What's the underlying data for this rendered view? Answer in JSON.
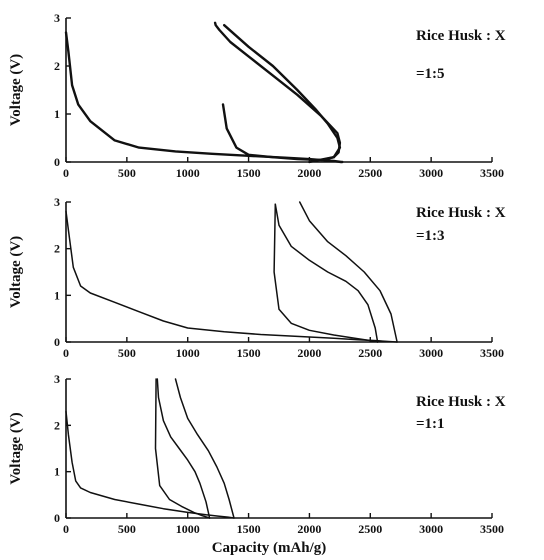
{
  "chart_data": [
    {
      "type": "line",
      "xlabel": "",
      "ylabel": "Voltage (V)",
      "xlim": [
        0,
        3500
      ],
      "ylim": [
        0,
        3
      ],
      "xticks": [
        "0",
        "500",
        "1000",
        "1500",
        "2000",
        "2500",
        "3000",
        "3500"
      ],
      "yticks": [
        "0",
        "1",
        "2",
        "3"
      ],
      "annotation": [
        "Rice Husk : X",
        "=1:5"
      ],
      "series": [
        {
          "x": [
            0,
            20,
            50,
            100,
            200,
            400,
            600,
            900,
            1200,
            1500,
            1800,
            2000,
            2100,
            2150,
            2200,
            2230,
            2260,
            2270
          ],
          "y": [
            2.7,
            2.3,
            1.6,
            1.2,
            0.85,
            0.45,
            0.3,
            0.22,
            0.17,
            0.13,
            0.09,
            0.06,
            0.04,
            0.03,
            0.02,
            0.01,
            0.0,
            0.0
          ]
        },
        {
          "x": [
            2000,
            2100,
            2200,
            2240,
            2250,
            2230,
            2100,
            1900,
            1700,
            1500,
            1350,
            1260,
            1230,
            1225
          ],
          "y": [
            0.0,
            0.05,
            0.1,
            0.2,
            0.4,
            0.6,
            0.95,
            1.4,
            1.8,
            2.2,
            2.5,
            2.75,
            2.85,
            2.9
          ]
        },
        {
          "x": [
            1300,
            1500,
            1700,
            1900,
            2050,
            2150,
            2230,
            2250,
            2200,
            2100,
            1900,
            1700,
            1500,
            1400,
            1320,
            1290
          ],
          "y": [
            2.85,
            2.4,
            2.0,
            1.5,
            1.1,
            0.8,
            0.5,
            0.3,
            0.1,
            0.04,
            0.06,
            0.1,
            0.15,
            0.3,
            0.7,
            1.2
          ]
        }
      ]
    },
    {
      "type": "line",
      "xlabel": "",
      "ylabel": "Voltage (V)",
      "xlim": [
        0,
        3500
      ],
      "ylim": [
        0,
        3
      ],
      "xticks": [
        "0",
        "500",
        "1000",
        "1500",
        "2000",
        "2500",
        "3000",
        "3500"
      ],
      "yticks": [
        "0",
        "1",
        "2",
        "3"
      ],
      "annotation": [
        "Rice Husk : X",
        "=1:3"
      ],
      "series": [
        {
          "x": [
            0,
            20,
            60,
            120,
            200,
            400,
            600,
            800,
            1000,
            1300,
            1600,
            1900,
            2200,
            2400,
            2550,
            2650,
            2720
          ],
          "y": [
            2.8,
            2.4,
            1.6,
            1.2,
            1.05,
            0.85,
            0.65,
            0.45,
            0.3,
            0.22,
            0.16,
            0.12,
            0.08,
            0.05,
            0.03,
            0.01,
            0.0
          ]
        },
        {
          "x": [
            1720,
            1750,
            1850,
            2000,
            2150,
            2300,
            2400,
            2480,
            2540,
            2560
          ],
          "y": [
            2.95,
            2.5,
            2.05,
            1.75,
            1.5,
            1.3,
            1.1,
            0.8,
            0.3,
            0.0
          ]
        },
        {
          "x": [
            1720,
            1710,
            1750,
            1850,
            2000,
            2200,
            2400,
            2530,
            2560
          ],
          "y": [
            2.95,
            1.5,
            0.7,
            0.4,
            0.25,
            0.15,
            0.07,
            0.02,
            0.0
          ]
        },
        {
          "x": [
            1920,
            2000,
            2150,
            2300,
            2450,
            2580,
            2670,
            2720
          ],
          "y": [
            3.0,
            2.6,
            2.15,
            1.85,
            1.5,
            1.1,
            0.6,
            0.0
          ]
        }
      ]
    },
    {
      "type": "line",
      "xlabel": "Capacity (mAh/g)",
      "ylabel": "Voltage (V)",
      "xlim": [
        0,
        3500
      ],
      "ylim": [
        0,
        3
      ],
      "xticks": [
        "0",
        "500",
        "1000",
        "1500",
        "2000",
        "2500",
        "3000",
        "3500"
      ],
      "yticks": [
        "0",
        "1",
        "2",
        "3"
      ],
      "annotation": [
        "Rice Husk : X",
        "=1:1"
      ],
      "series": [
        {
          "x": [
            0,
            20,
            50,
            80,
            120,
            200,
            400,
            600,
            800,
            1000,
            1150,
            1250,
            1330,
            1380
          ],
          "y": [
            2.3,
            1.8,
            1.2,
            0.8,
            0.65,
            0.55,
            0.4,
            0.3,
            0.2,
            0.12,
            0.07,
            0.04,
            0.02,
            0.0
          ]
        },
        {
          "x": [
            750,
            760,
            800,
            860,
            930,
            1000,
            1060,
            1100,
            1150,
            1180
          ],
          "y": [
            3.0,
            2.6,
            2.1,
            1.75,
            1.5,
            1.25,
            1.0,
            0.75,
            0.35,
            0.0
          ]
        },
        {
          "x": [
            740,
            735,
            770,
            850,
            950,
            1050,
            1120,
            1180
          ],
          "y": [
            3.0,
            1.5,
            0.7,
            0.4,
            0.25,
            0.12,
            0.05,
            0.0
          ]
        },
        {
          "x": [
            900,
            940,
            1000,
            1080,
            1170,
            1240,
            1300,
            1340,
            1380
          ],
          "y": [
            3.0,
            2.6,
            2.15,
            1.8,
            1.45,
            1.1,
            0.75,
            0.4,
            0.0
          ]
        }
      ]
    }
  ]
}
